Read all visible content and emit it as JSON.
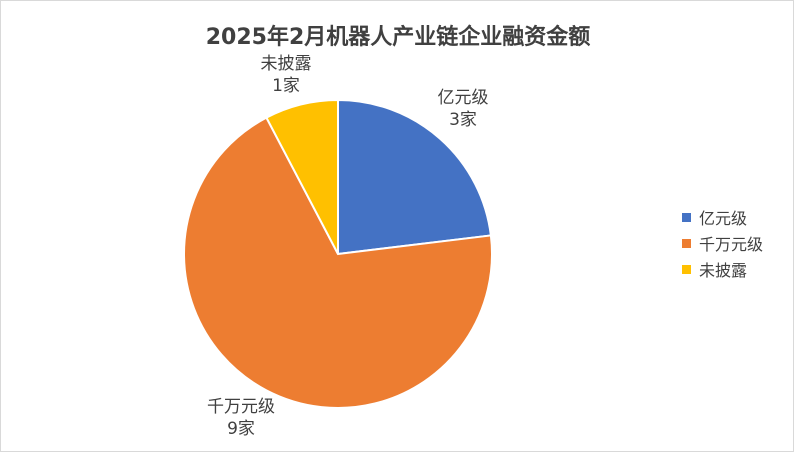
{
  "chart_data": {
    "type": "pie",
    "title": "2025年2月机器人产业链企业融资金额",
    "categories": [
      "亿元级",
      "千万元级",
      "未披露"
    ],
    "values": [
      3,
      9,
      1
    ],
    "value_labels": [
      "3家",
      "9家",
      "1家"
    ],
    "colors": [
      "#4472C4",
      "#ED7D31",
      "#FFC000"
    ],
    "legend_position": "right",
    "start_angle": "12 o'clock, clockwise"
  }
}
